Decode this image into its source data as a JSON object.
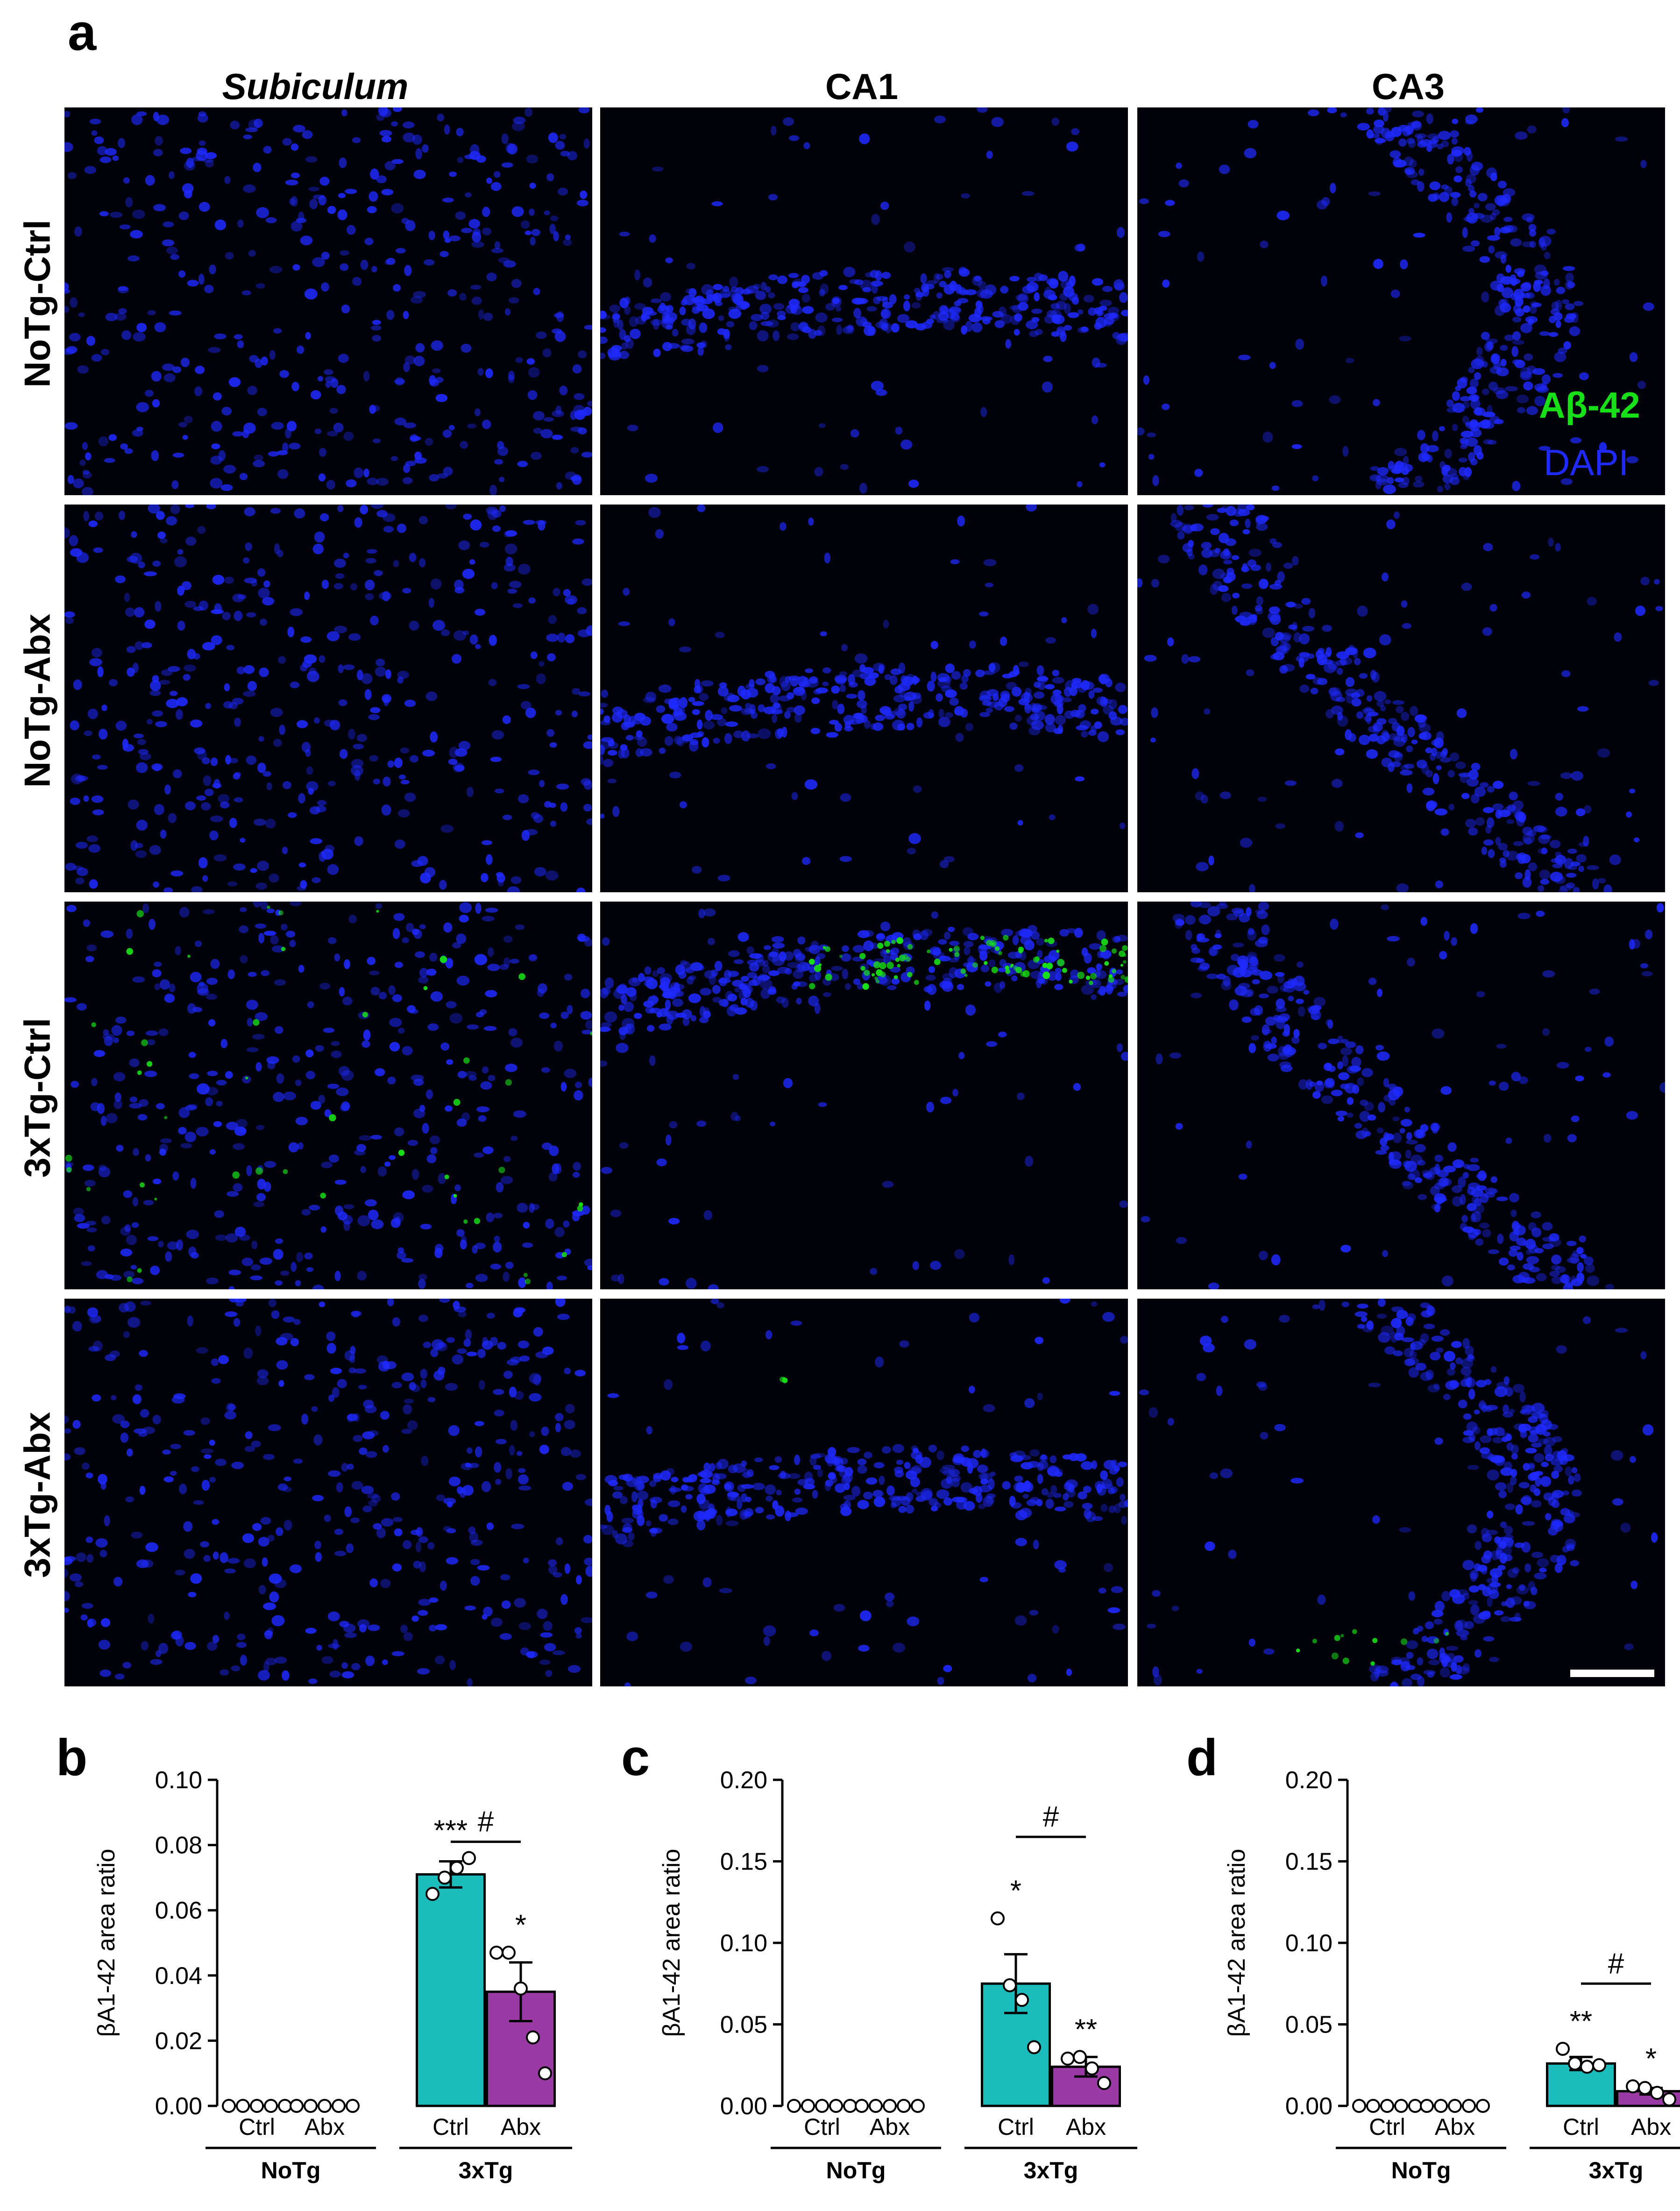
{
  "panel_a": {
    "letter": "a",
    "columns": [
      "Subiculum",
      "CA1",
      "CA3"
    ],
    "rows": [
      "NoTg-Ctrl",
      "NoTg-Abx",
      "3xTg-Ctrl",
      "3xTg-Abx"
    ],
    "legend": {
      "marker": "Aβ-42",
      "nuclear": "DAPI"
    },
    "colors": {
      "dapi": "#1f2aff",
      "amyloid": "#18e018",
      "background": "#02020a"
    }
  },
  "chart_data": [
    {
      "letter": "b",
      "type": "bar",
      "ylabel": "βA1-42 area ratio",
      "ylim": [
        0,
        0.1
      ],
      "yticks": [
        "0.00",
        "0.02",
        "0.04",
        "0.06",
        "0.08",
        "0.10"
      ],
      "ytick_values": [
        0,
        0.02,
        0.04,
        0.06,
        0.08,
        0.1
      ],
      "categories": [
        "Ctrl",
        "Abx",
        "Ctrl",
        "Abx"
      ],
      "groups": [
        "NoTg",
        "3xTg"
      ],
      "values": [
        0,
        0,
        0.071,
        0.035
      ],
      "errors": [
        0,
        0,
        0.004,
        0.009
      ],
      "points": [
        [
          0,
          0,
          0,
          0,
          0
        ],
        [
          0,
          0,
          0,
          0,
          0
        ],
        [
          0.065,
          0.07,
          0.073,
          0.076
        ],
        [
          0.047,
          0.047,
          0.036,
          0.021,
          0.01
        ]
      ],
      "significance": [
        "",
        "",
        "***",
        "*"
      ],
      "bracket": {
        "label": "#",
        "value": 0.081
      },
      "colors": [
        "#ffffff",
        "#ffffff",
        "#1cbcbd",
        "#9c3aa5"
      ]
    },
    {
      "letter": "c",
      "type": "bar",
      "ylabel": "βA1-42 area ratio",
      "ylim": [
        0,
        0.2
      ],
      "yticks": [
        "0.00",
        "0.05",
        "0.10",
        "0.15",
        "0.20"
      ],
      "ytick_values": [
        0,
        0.05,
        0.1,
        0.15,
        0.2
      ],
      "categories": [
        "Ctrl",
        "Abx",
        "Ctrl",
        "Abx"
      ],
      "groups": [
        "NoTg",
        "3xTg"
      ],
      "values": [
        0,
        0,
        0.075,
        0.024
      ],
      "errors": [
        0,
        0,
        0.018,
        0.006
      ],
      "points": [
        [
          0,
          0,
          0,
          0,
          0
        ],
        [
          0,
          0,
          0,
          0,
          0
        ],
        [
          0.115,
          0.074,
          0.065,
          0.036
        ],
        [
          0.029,
          0.03,
          0.023,
          0.014
        ]
      ],
      "significance": [
        "",
        "",
        "*",
        "**"
      ],
      "bracket": {
        "label": "#",
        "value": 0.165
      },
      "colors": [
        "#ffffff",
        "#ffffff",
        "#1cbcbd",
        "#9c3aa5"
      ]
    },
    {
      "letter": "d",
      "type": "bar",
      "ylabel": "βA1-42 area ratio",
      "ylim": [
        0,
        0.2
      ],
      "yticks": [
        "0.00",
        "0.05",
        "0.10",
        "0.15",
        "0.20"
      ],
      "ytick_values": [
        0,
        0.05,
        0.1,
        0.15,
        0.2
      ],
      "categories": [
        "Ctrl",
        "Abx",
        "Ctrl",
        "Abx"
      ],
      "groups": [
        "NoTg",
        "3xTg"
      ],
      "values": [
        0,
        0,
        0.026,
        0.009
      ],
      "errors": [
        0,
        0,
        0.004,
        0.002
      ],
      "points": [
        [
          0,
          0,
          0,
          0,
          0
        ],
        [
          0,
          0,
          0,
          0,
          0
        ],
        [
          0.035,
          0.026,
          0.024,
          0.025
        ],
        [
          0.012,
          0.011,
          0.008,
          0.004
        ]
      ],
      "significance": [
        "",
        "",
        "**",
        "*"
      ],
      "bracket": {
        "label": "#",
        "value": 0.075
      },
      "colors": [
        "#ffffff",
        "#ffffff",
        "#1cbcbd",
        "#9c3aa5"
      ]
    }
  ]
}
